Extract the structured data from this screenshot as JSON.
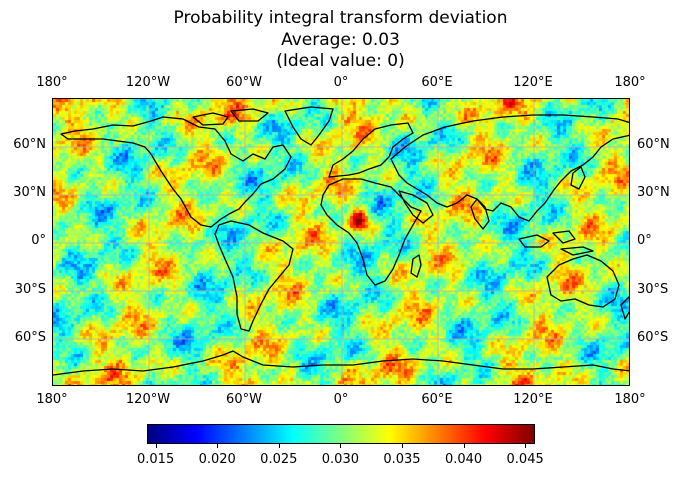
{
  "title": {
    "line1": "Probability integral transform deviation",
    "line2": "Average: 0.03",
    "line3": "(Ideal value: 0)"
  },
  "map": {
    "projection": "PlateCarree",
    "extent_lon": [
      -180,
      180
    ],
    "extent_lat": [
      -90,
      90
    ],
    "gridlines": true,
    "coastlines": true,
    "lon_ticks": [
      "180°",
      "120°W",
      "60°W",
      "0°",
      "60°E",
      "120°E",
      "180°"
    ],
    "lat_ticks": [
      "60°N",
      "30°N",
      "0°",
      "30°S",
      "60°S"
    ],
    "lon_tick_values": [
      -180,
      -120,
      -60,
      0,
      60,
      120,
      180
    ],
    "lat_tick_values": [
      60,
      30,
      0,
      -30,
      -60
    ]
  },
  "colorbar": {
    "colormap": "jet",
    "vmin": 0.0143,
    "vmax": 0.0458,
    "ticks": [
      "0.015",
      "0.020",
      "0.025",
      "0.030",
      "0.035",
      "0.040",
      "0.045"
    ],
    "tick_values": [
      0.015,
      0.02,
      0.025,
      0.03,
      0.035,
      0.04,
      0.045
    ]
  },
  "colors": {
    "gridline": "#b0b0b0",
    "coastline": "#000000"
  }
}
